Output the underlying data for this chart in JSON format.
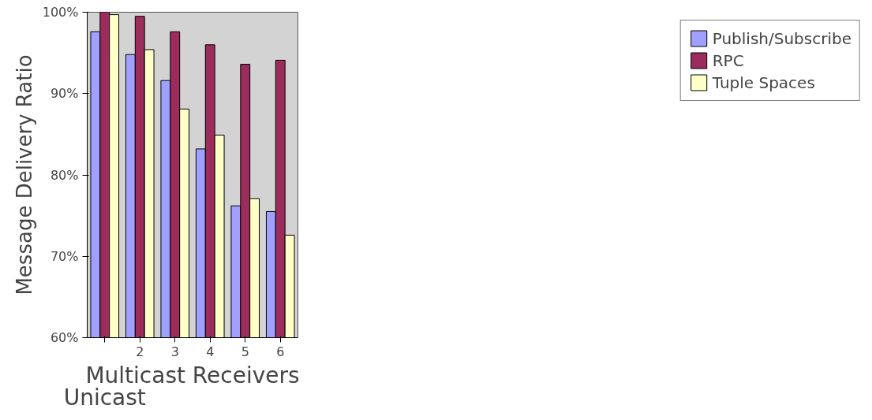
{
  "chart_data": {
    "type": "bar",
    "categories": [
      null,
      "2",
      "3",
      "4",
      "5",
      "6"
    ],
    "ylabel": "Message Delivery Ratio",
    "xlabel": "Multicast Receivers",
    "annotations": [
      "Unicast"
    ],
    "series": [
      {
        "name": "Publish/Subscribe",
        "color": "#a0a0ff",
        "values": [
          97.6,
          94.8,
          91.6,
          83.2,
          76.2,
          75.5
        ]
      },
      {
        "name": "RPC",
        "color": "#9b2c5c",
        "values": [
          100,
          99.5,
          97.6,
          96.0,
          93.6,
          94.1
        ]
      },
      {
        "name": "Tuple Spaces",
        "color": "#ffffc8",
        "values": [
          99.7,
          95.4,
          88.1,
          84.9,
          77.1,
          72.6
        ]
      }
    ],
    "ylim": [
      60,
      100
    ],
    "yticks": [
      {
        "value": 60,
        "label": "60%"
      },
      {
        "value": 70,
        "label": "70%"
      },
      {
        "value": 80,
        "label": "80%"
      },
      {
        "value": 90,
        "label": "90%"
      },
      {
        "value": 100,
        "label": "100%"
      }
    ],
    "grid": false,
    "legend": "right"
  }
}
